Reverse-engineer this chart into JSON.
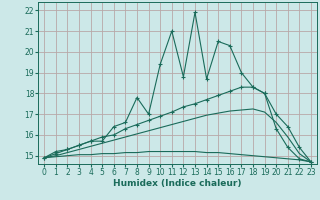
{
  "title": "",
  "xlabel": "Humidex (Indice chaleur)",
  "bg_color": "#cce8e8",
  "grid_color": "#b8a8a8",
  "line_color": "#1a6b5a",
  "x_data": [
    0,
    1,
    2,
    3,
    4,
    5,
    6,
    7,
    8,
    9,
    10,
    11,
    12,
    13,
    14,
    15,
    16,
    17,
    18,
    19,
    20,
    21,
    22,
    23
  ],
  "line1_y": [
    14.9,
    15.2,
    15.3,
    15.5,
    15.7,
    15.7,
    16.4,
    16.6,
    17.8,
    17.0,
    19.4,
    21.0,
    18.8,
    21.9,
    18.7,
    20.5,
    20.3,
    19.0,
    18.3,
    18.0,
    16.3,
    15.4,
    14.85,
    14.7
  ],
  "line2_y": [
    14.9,
    15.1,
    15.3,
    15.5,
    15.7,
    15.9,
    16.0,
    16.3,
    16.5,
    16.7,
    16.9,
    17.1,
    17.35,
    17.5,
    17.7,
    17.9,
    18.1,
    18.3,
    18.3,
    18.0,
    17.0,
    16.4,
    15.4,
    14.7
  ],
  "line3_y": [
    14.9,
    15.0,
    15.15,
    15.3,
    15.45,
    15.6,
    15.75,
    15.9,
    16.05,
    16.2,
    16.35,
    16.5,
    16.65,
    16.8,
    16.95,
    17.05,
    17.15,
    17.2,
    17.25,
    17.1,
    16.6,
    15.9,
    15.1,
    14.7
  ],
  "line4_y": [
    14.9,
    14.95,
    15.0,
    15.05,
    15.05,
    15.1,
    15.1,
    15.15,
    15.15,
    15.2,
    15.2,
    15.2,
    15.2,
    15.2,
    15.15,
    15.15,
    15.1,
    15.05,
    15.0,
    14.95,
    14.9,
    14.85,
    14.8,
    14.7
  ],
  "ylim": [
    14.6,
    22.4
  ],
  "xlim": [
    -0.5,
    23.5
  ],
  "yticks": [
    15,
    16,
    17,
    18,
    19,
    20,
    21,
    22
  ],
  "xticks": [
    0,
    1,
    2,
    3,
    4,
    5,
    6,
    7,
    8,
    9,
    10,
    11,
    12,
    13,
    14,
    15,
    16,
    17,
    18,
    19,
    20,
    21,
    22,
    23
  ],
  "xlabel_fontsize": 6.5,
  "tick_fontsize": 5.5
}
